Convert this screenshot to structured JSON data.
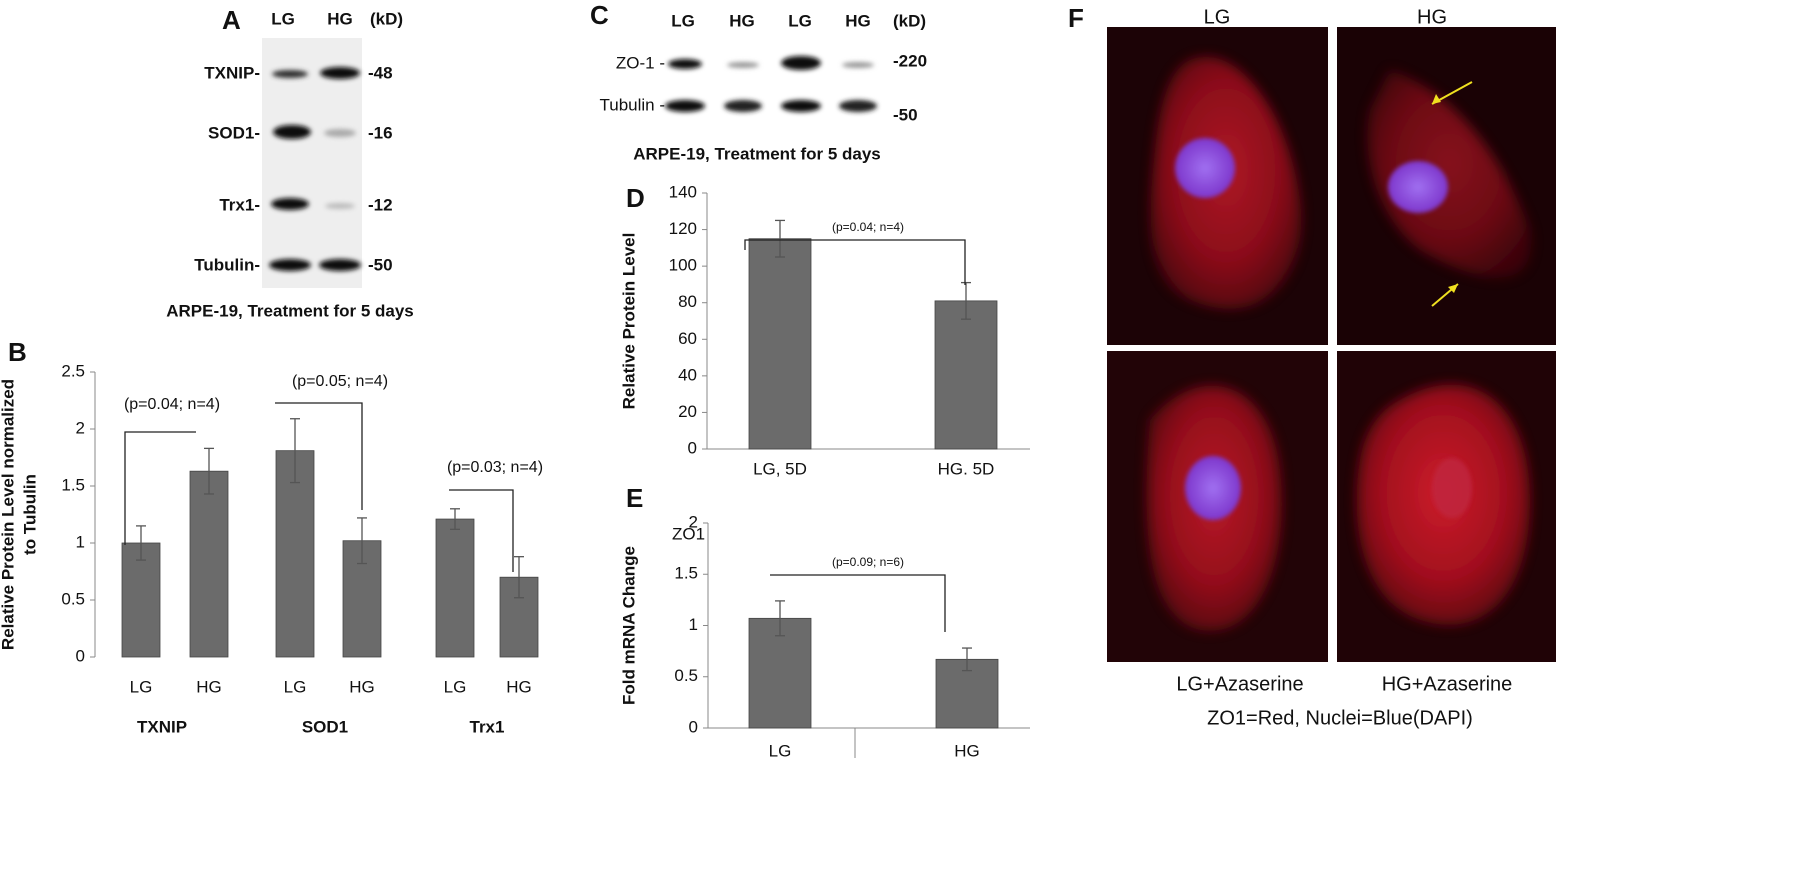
{
  "panel_labels": [
    "A",
    "B",
    "C",
    "D",
    "E",
    "F"
  ],
  "blot_a": {
    "lanes": [
      "LG",
      "HG"
    ],
    "unit": "(kD)",
    "rows": [
      {
        "label": "TXNIP-",
        "size": "-48"
      },
      {
        "label": "SOD1-",
        "size": "-16"
      },
      {
        "label": "Trx1-",
        "size": "-12"
      },
      {
        "label": "Tubulin-",
        "size": "-50"
      }
    ],
    "caption": "ARPE-19, Treatment for 5 days"
  },
  "blot_c": {
    "lanes": [
      "LG",
      "HG",
      "LG",
      "HG"
    ],
    "unit": "(kD)",
    "rows": [
      {
        "label": "ZO-1 -",
        "size": "-220"
      },
      {
        "label": "Tubulin -",
        "size": "-50"
      }
    ],
    "caption": "ARPE-19, Treatment for 5 days"
  },
  "chart_data": [
    {
      "type": "bar",
      "y_label": [
        "Relative Protein Level normalized",
        "to Tubulin"
      ],
      "categories": [
        "LG",
        "HG",
        "LG",
        "HG",
        "LG",
        "HG"
      ],
      "groups": [
        "TXNIP",
        "SOD1",
        "Trx1"
      ],
      "values": [
        1.0,
        1.63,
        1.81,
        1.02,
        1.21,
        0.7
      ],
      "errors": [
        0.15,
        0.2,
        0.28,
        0.2,
        0.09,
        0.18
      ],
      "color": "#6b6b6b",
      "ylim": [
        0,
        2.5
      ],
      "yticks": [
        0,
        0.5,
        1,
        1.5,
        2,
        2.5
      ],
      "annotations": [
        "(p=0.04; n=4)",
        "(p=0.05; n=4)",
        "(p=0.03; n=4)"
      ]
    },
    {
      "type": "bar",
      "y_label": [
        "Relative Protein Level"
      ],
      "categories": [
        "LG, 5D",
        "HG. 5D"
      ],
      "values": [
        115,
        81
      ],
      "errors": [
        10,
        10
      ],
      "color": "#6b6b6b",
      "ylim": [
        0,
        140
      ],
      "yticks": [
        0,
        20,
        40,
        60,
        80,
        100,
        120,
        140
      ],
      "annotations": [
        "(p=0.04; n=4)"
      ]
    },
    {
      "type": "bar",
      "title": "ZO1",
      "y_label": [
        "Fold mRNA Change"
      ],
      "categories": [
        "LG",
        "HG"
      ],
      "values": [
        1.07,
        0.67
      ],
      "errors": [
        0.17,
        0.11
      ],
      "color": "#6b6b6b",
      "ylim": [
        0,
        2
      ],
      "yticks": [
        0,
        0.5,
        1,
        1.5,
        2
      ],
      "annotations": [
        "(p=0.09; n=6)"
      ]
    }
  ],
  "images": {
    "column_labels": [
      "LG",
      "HG"
    ],
    "row_captions": [
      "LG+Azaserine",
      "HG+Azaserine"
    ],
    "legend": "ZO1=Red, Nuclei=Blue(DAPI)"
  }
}
